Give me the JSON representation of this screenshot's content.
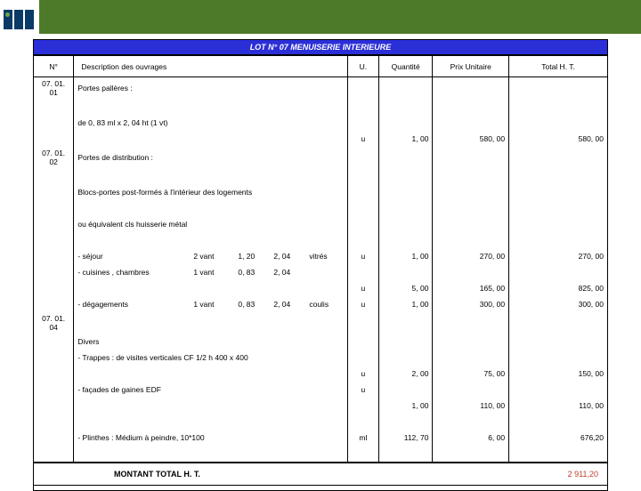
{
  "colors": {
    "header_green": "#4d7a28",
    "logo_navy": "#0a3a66",
    "logo_dot": "#6aa84f",
    "title_bg": "#2b2fd8",
    "title_text": "#ffffff",
    "total_text": "#c0392b"
  },
  "title": "LOT N° 07 MENUISERIE INTERIEURE",
  "columns": {
    "n": "N°",
    "desc": "Description des ouvrages",
    "u": "U.",
    "q": "Quantité",
    "pu": "Prix Unitaire",
    "t": "Total H. T."
  },
  "r": {
    "sec1_n": "07. 01. 01",
    "sec1_d": "Portes pallères :",
    "sec1_sub": "de 0, 83 ml x 2, 04 ht (1 vt)",
    "sec1_u": "u",
    "sec1_q": "1, 00",
    "sec1_pu": "580, 00",
    "sec1_t": "580, 00",
    "sec2_n": "07. 01. 02",
    "sec2_d": "Portes de distribution :",
    "sec2_b1": "Blocs-portes post-formés à l'intérieur des logements",
    "sec2_b2": "ou équivalent cls huisserie métal",
    "l1_lab": "- séjour",
    "l1_c1": "2 vant",
    "l1_c2": "1, 20",
    "l1_c3": "2, 04",
    "l1_c4": "vitrés",
    "l1_u": "u",
    "l1_q": "1, 00",
    "l1_pu": "270, 00",
    "l1_t": "270, 00",
    "l2_lab": "- cuisines , chambres",
    "l2_c1": "1 vant",
    "l2_c2": "0, 83",
    "l2_c3": "2, 04",
    "l2_c4": "",
    "l2_u": "u",
    "l2_q": "5, 00",
    "l2_pu": "165, 00",
    "l2_t": "825, 00",
    "l3_lab": "- dégagements",
    "l3_c1": "1 vant",
    "l3_c2": "0, 83",
    "l3_c3": "2, 04",
    "l3_c4": "coulis",
    "l3_u": "u",
    "l3_q": "1, 00",
    "l3_pu": "300, 00",
    "l3_t": "300, 00",
    "sec4_n": "07. 01. 04",
    "sec4_d": "Divers",
    "d1_lab": "- Trappes : de visites verticales CF 1/2 h 400 x 400",
    "d1_u": "u",
    "d1_q": "2, 00",
    "d1_pu": "75, 00",
    "d1_t": "150, 00",
    "d2_lab": "- façades de gaines EDF",
    "d2_u": "u",
    "d2_q": "1, 00",
    "d2_pu": "110, 00",
    "d2_t": "110, 00",
    "d3_lab": "- Plinthes : Médium à peindre, 10*100",
    "d3_u": "ml",
    "d3_q": "112, 70",
    "d3_pu": "6, 00",
    "d3_t": "676,20"
  },
  "total_label": "MONTANT TOTAL H. T.",
  "total_value": "2 911,20"
}
